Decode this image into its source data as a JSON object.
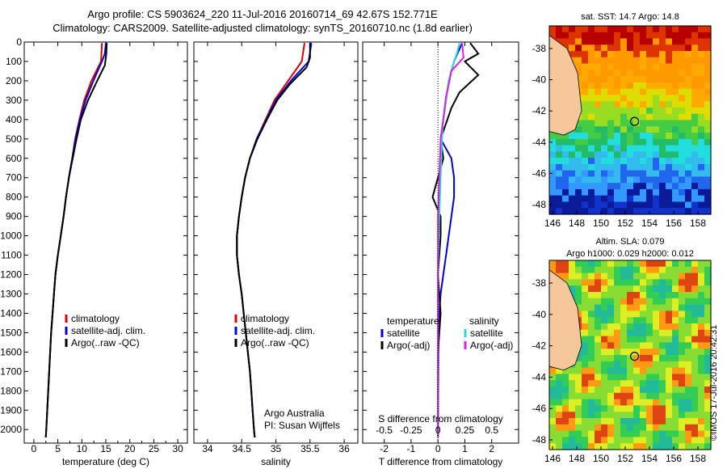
{
  "title_line1": "Argo profile: CS 5903624_220 11-Jul-2016 20160714_69 42.67S 152.771E",
  "title_line2": "Climatology: CARS2009. Satellite-adjusted climatology: synTS_20160710.nc (1.8d earlier)",
  "map_sst_title": "sat. SST: 14.7 Argo: 14.8",
  "map_sla_title1": "Altim. SLA: 0.079",
  "map_sla_title2": "Argo h1000: 0.029 h2000: 0.012",
  "credit": "©IMOS 17-Jul-2016 20:42:31",
  "colors": {
    "climatology": "#e00000",
    "satellite": "#0000dd",
    "argo": "#000000",
    "sal_satellite": "#22dddd",
    "sal_argo": "#dd22dd"
  },
  "chart_data": [
    {
      "type": "line",
      "xlabel": "temperature (deg C)",
      "xticks": [
        "0",
        "5",
        "10",
        "15",
        "20",
        "25",
        "30"
      ],
      "xlim": [
        -2,
        32
      ],
      "ylim": [
        0,
        2070
      ],
      "yticks": [
        "0",
        "100",
        "200",
        "300",
        "400",
        "500",
        "600",
        "700",
        "800",
        "900",
        "1000",
        "1100",
        "1200",
        "1300",
        "1400",
        "1500",
        "1600",
        "1700",
        "1800",
        "1900",
        "2000"
      ],
      "legend": [
        "climatology",
        "satellite-adj. clim.",
        "Argo(..raw -QC)"
      ],
      "series": [
        {
          "name": "climatology",
          "values": [
            [
              14.2,
              5
            ],
            [
              14.0,
              100
            ],
            [
              12.0,
              200
            ],
            [
              10.5,
              300
            ],
            [
              9.5,
              400
            ],
            [
              8.6,
              500
            ],
            [
              8.0,
              600
            ],
            [
              7.3,
              700
            ],
            [
              6.7,
              800
            ],
            [
              6.2,
              900
            ],
            [
              5.6,
              1000
            ],
            [
              5.0,
              1100
            ],
            [
              4.5,
              1200
            ],
            [
              4.2,
              1300
            ],
            [
              3.9,
              1400
            ],
            [
              3.6,
              1500
            ],
            [
              3.4,
              1600
            ],
            [
              3.2,
              1700
            ],
            [
              3.0,
              1800
            ],
            [
              2.8,
              1900
            ],
            [
              2.6,
              2000
            ],
            [
              2.5,
              2040
            ]
          ]
        },
        {
          "name": "satellite-adj. clim.",
          "values": [
            [
              15.0,
              5
            ],
            [
              14.8,
              60
            ],
            [
              14.2,
              100
            ],
            [
              12.4,
              200
            ],
            [
              10.8,
              300
            ],
            [
              9.6,
              400
            ],
            [
              8.7,
              500
            ],
            [
              8.0,
              600
            ],
            [
              7.3,
              700
            ],
            [
              6.7,
              800
            ],
            [
              6.2,
              900
            ],
            [
              5.6,
              1000
            ],
            [
              5.0,
              1100
            ],
            [
              4.5,
              1200
            ],
            [
              4.2,
              1300
            ],
            [
              3.9,
              1400
            ],
            [
              3.6,
              1500
            ],
            [
              3.4,
              1600
            ],
            [
              3.2,
              1700
            ],
            [
              3.0,
              1800
            ],
            [
              2.8,
              1900
            ],
            [
              2.6,
              2000
            ],
            [
              2.5,
              2040
            ]
          ]
        },
        {
          "name": "Argo(..raw -QC)",
          "values": [
            [
              15.2,
              5
            ],
            [
              15.1,
              60
            ],
            [
              14.8,
              120
            ],
            [
              13.2,
              200
            ],
            [
              11.3,
              300
            ],
            [
              9.8,
              400
            ],
            [
              8.9,
              500
            ],
            [
              8.1,
              600
            ],
            [
              7.3,
              700
            ],
            [
              6.7,
              800
            ],
            [
              6.2,
              900
            ],
            [
              5.6,
              1000
            ],
            [
              5.0,
              1100
            ],
            [
              4.5,
              1200
            ],
            [
              4.2,
              1300
            ],
            [
              3.9,
              1400
            ],
            [
              3.6,
              1500
            ],
            [
              3.4,
              1600
            ],
            [
              3.2,
              1700
            ],
            [
              3.0,
              1800
            ],
            [
              2.8,
              1900
            ],
            [
              2.6,
              2000
            ],
            [
              2.5,
              2040
            ]
          ]
        }
      ]
    },
    {
      "type": "line",
      "xlabel": "salinity",
      "xticks": [
        "34",
        "34.5",
        "35",
        "35.5",
        "36"
      ],
      "xlim": [
        33.8,
        36.2
      ],
      "ylim": [
        0,
        2070
      ],
      "legend": [
        "climatology",
        "satellite-adj. clim.",
        "Argo(..raw -QC)"
      ],
      "annotation1": "Argo Australia",
      "annotation2": "PI: Susan Wijffels",
      "series": [
        {
          "name": "climatology",
          "values": [
            [
              35.42,
              5
            ],
            [
              35.38,
              100
            ],
            [
              35.18,
              200
            ],
            [
              34.98,
              300
            ],
            [
              34.85,
              400
            ],
            [
              34.72,
              500
            ],
            [
              34.62,
              600
            ],
            [
              34.55,
              700
            ],
            [
              34.5,
              800
            ],
            [
              34.46,
              900
            ],
            [
              34.43,
              1000
            ],
            [
              34.43,
              1100
            ],
            [
              34.46,
              1200
            ],
            [
              34.5,
              1300
            ],
            [
              34.53,
              1400
            ],
            [
              34.56,
              1500
            ],
            [
              34.59,
              1600
            ],
            [
              34.62,
              1700
            ],
            [
              34.64,
              1800
            ],
            [
              34.66,
              1900
            ],
            [
              34.68,
              2000
            ],
            [
              34.69,
              2040
            ]
          ]
        },
        {
          "name": "satellite-adj. clim.",
          "values": [
            [
              35.52,
              5
            ],
            [
              35.48,
              100
            ],
            [
              35.22,
              200
            ],
            [
              35.0,
              300
            ],
            [
              34.86,
              400
            ],
            [
              34.72,
              500
            ],
            [
              34.62,
              600
            ],
            [
              34.55,
              700
            ],
            [
              34.5,
              800
            ],
            [
              34.46,
              900
            ],
            [
              34.43,
              1000
            ],
            [
              34.43,
              1100
            ],
            [
              34.46,
              1200
            ],
            [
              34.5,
              1300
            ],
            [
              34.53,
              1400
            ],
            [
              34.56,
              1500
            ],
            [
              34.59,
              1600
            ],
            [
              34.62,
              1700
            ],
            [
              34.64,
              1800
            ],
            [
              34.66,
              1900
            ],
            [
              34.68,
              2000
            ],
            [
              34.69,
              2040
            ]
          ]
        },
        {
          "name": "Argo(..raw -QC)",
          "values": [
            [
              35.5,
              5
            ],
            [
              35.5,
              80
            ],
            [
              35.45,
              130
            ],
            [
              35.2,
              220
            ],
            [
              35.02,
              300
            ],
            [
              34.87,
              400
            ],
            [
              34.73,
              500
            ],
            [
              34.62,
              600
            ],
            [
              34.55,
              700
            ],
            [
              34.5,
              800
            ],
            [
              34.46,
              900
            ],
            [
              34.43,
              1000
            ],
            [
              34.43,
              1100
            ],
            [
              34.46,
              1200
            ],
            [
              34.5,
              1300
            ],
            [
              34.53,
              1400
            ],
            [
              34.56,
              1500
            ],
            [
              34.59,
              1600
            ],
            [
              34.62,
              1700
            ],
            [
              34.64,
              1800
            ],
            [
              34.66,
              1900
            ],
            [
              34.68,
              2000
            ],
            [
              34.69,
              2040
            ]
          ]
        }
      ]
    },
    {
      "type": "line",
      "xlabel": "T difference from climatology",
      "xlabel2": "S difference from climatology",
      "xticks": [
        "-2",
        "-1",
        "0",
        "1",
        "2"
      ],
      "xticks_top": [
        "-0.5",
        "-0.25",
        "0",
        "0.25",
        "0.5"
      ],
      "xlim": [
        -2.8,
        3.0
      ],
      "ylim": [
        0,
        2070
      ],
      "legend_temperature": [
        "temperature",
        "satellite",
        "Argo(-adj)"
      ],
      "legend_salinity": [
        "salinity",
        "satellite",
        "Argo(-adj)"
      ],
      "series": [
        {
          "name": "satellite",
          "values": [
            [
              0.9,
              5
            ],
            [
              0.6,
              100
            ],
            [
              0.4,
              200
            ],
            [
              0.3,
              300
            ],
            [
              0.2,
              400
            ],
            [
              0.1,
              500
            ],
            [
              0.5,
              600
            ],
            [
              0.6,
              700
            ],
            [
              0.6,
              800
            ],
            [
              0.5,
              900
            ],
            [
              0.4,
              1000
            ],
            [
              0.3,
              1100
            ],
            [
              0.2,
              1200
            ],
            [
              0.1,
              1300
            ],
            [
              0.05,
              1400
            ],
            [
              0.02,
              1600
            ],
            [
              0.0,
              2040
            ]
          ]
        },
        {
          "name": "Argo(-adj)",
          "values": [
            [
              1.2,
              5
            ],
            [
              1.5,
              60
            ],
            [
              1.0,
              100
            ],
            [
              1.5,
              170
            ],
            [
              0.8,
              260
            ],
            [
              0.5,
              340
            ],
            [
              0.3,
              420
            ],
            [
              0.1,
              500
            ],
            [
              0.2,
              600
            ],
            [
              0.0,
              700
            ],
            [
              -0.2,
              800
            ],
            [
              0.1,
              900
            ],
            [
              0.1,
              1000
            ],
            [
              0.0,
              1200
            ],
            [
              0.1,
              1400
            ],
            [
              0.0,
              1600
            ],
            [
              0.0,
              2040
            ]
          ]
        },
        {
          "name": "satellite",
          "values": [
            [
              0.8,
              5
            ],
            [
              0.7,
              60
            ],
            [
              0.6,
              100
            ],
            [
              0.4,
              200
            ],
            [
              0.3,
              300
            ],
            [
              0.2,
              400
            ],
            [
              0.15,
              500
            ],
            [
              0.1,
              700
            ],
            [
              0.05,
              900
            ],
            [
              0.0,
              1200
            ],
            [
              0.0,
              2040
            ]
          ]
        },
        {
          "name": "Argo(-adj)",
          "values": [
            [
              0.9,
              5
            ],
            [
              0.95,
              80
            ],
            [
              0.5,
              150
            ],
            [
              0.4,
              220
            ],
            [
              0.3,
              280
            ],
            [
              0.2,
              400
            ],
            [
              0.1,
              500
            ],
            [
              0.05,
              700
            ],
            [
              0.0,
              900
            ],
            [
              0.0,
              2040
            ]
          ]
        }
      ]
    }
  ],
  "maps": [
    {
      "ylabels": [
        "-38",
        "-40",
        "-42",
        "-44",
        "-46",
        "-48"
      ],
      "xlabels": [
        "146",
        "148",
        "150",
        "152",
        "154",
        "156",
        "158"
      ],
      "marker": [
        152.77,
        -42.67
      ]
    },
    {
      "ylabels": [
        "-38",
        "-40",
        "-42",
        "-44",
        "-46",
        "-48"
      ],
      "xlabels": [
        "146",
        "148",
        "150",
        "152",
        "154",
        "156",
        "158"
      ],
      "marker": [
        152.77,
        -42.67
      ]
    }
  ]
}
